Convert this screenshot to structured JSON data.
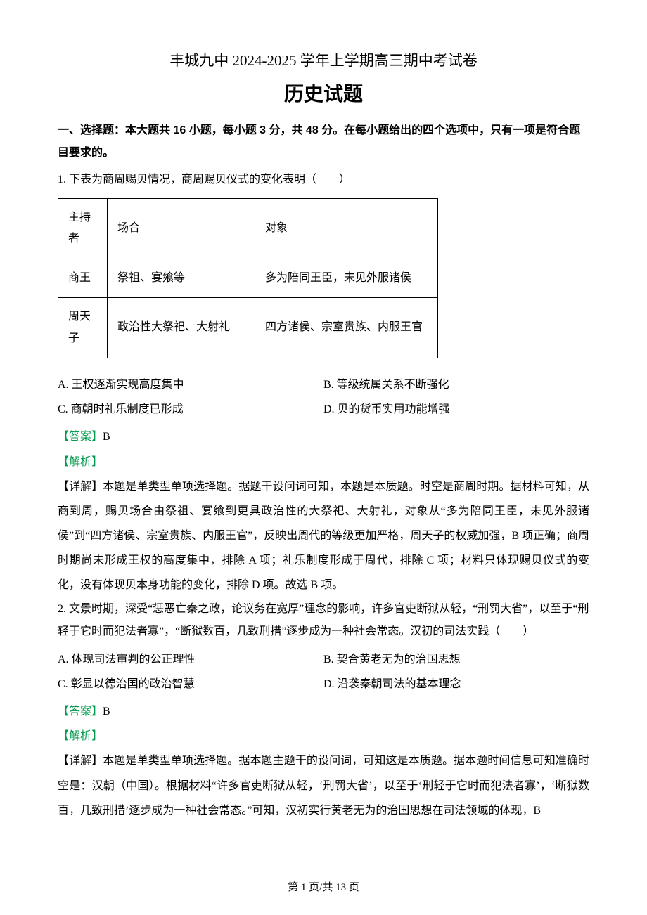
{
  "header": {
    "line1": "丰城九中 2024-2025 学年上学期高三期中考试卷",
    "line2": "历史试题"
  },
  "section_instruction": "一、选择题：本大题共 16 小题，每小题 3 分，共 48 分。在每小题给出的四个选项中，只有一项是符合题目要求的。",
  "q1": {
    "stem": "1. 下表为商周赐贝情况，商周赐贝仪式的变化表明（　　）",
    "table": {
      "rows": [
        [
          "主持者",
          "场合",
          "对象"
        ],
        [
          "商王",
          "祭祖、宴飨等",
          "多为陪同王臣，未见外服诸侯"
        ],
        [
          "周天子",
          "政治性大祭祀、大射礼",
          "四方诸侯、宗室贵族、内服王官"
        ]
      ]
    },
    "options": {
      "A": "A. 王权逐渐实现高度集中",
      "B": "B. 等级统属关系不断强化",
      "C": "C. 商朝时礼乐制度已形成",
      "D": "D. 贝的货币实用功能增强"
    },
    "answer_label": "【答案】",
    "answer_value": "B",
    "analysis_label": "【解析】",
    "explain": "【详解】本题是单类型单项选择题。据题干设问词可知，本题是本质题。时空是商周时期。据材料可知，从商到周，赐贝场合由祭祖、宴飨到更具政治性的大祭祀、大射礼，对象从“多为陪同王臣，未见外服诸侯”到“四方诸侯、宗室贵族、内服王官”，反映出周代的等级更加严格，周天子的权威加强，B 项正确；商周时期尚未形成王权的高度集中，排除 A 项；礼乐制度形成于周代，排除 C 项；材料只体现赐贝仪式的变化，没有体现贝本身功能的变化，排除 D 项。故选 B 项。"
  },
  "q2": {
    "stem": "2. 文景时期，深受“惩恶亡秦之政，论议务在宽厚”理念的影响，许多官吏断狱从轻，“刑罚大省”，以至于“刑轻于它时而犯法者寡”，“断狱数百，几致刑措”逐步成为一种社会常态。汉初的司法实践（　　）",
    "options": {
      "A": "A. 体现司法审判的公正理性",
      "B": "B. 契合黄老无为的治国思想",
      "C": "C. 彰显以德治国的政治智慧",
      "D": "D. 沿袭秦朝司法的基本理念"
    },
    "answer_label": "【答案】",
    "answer_value": "B",
    "analysis_label": "【解析】",
    "explain": "【详解】本题是单类型单项选择题。据本题主题干的设问词，可知这是本质题。据本题时间信息可知准确时空是：汉朝（中国）。根据材料“许多官吏断狱从轻，‘刑罚大省’，以至于‘刑轻于它时而犯法者寡’，‘断狱数百，几致刑措’逐步成为一种社会常态。”可知，汉初实行黄老无为的治国思想在司法领域的体现，B"
  },
  "footer": "第 1 页/共 13 页"
}
